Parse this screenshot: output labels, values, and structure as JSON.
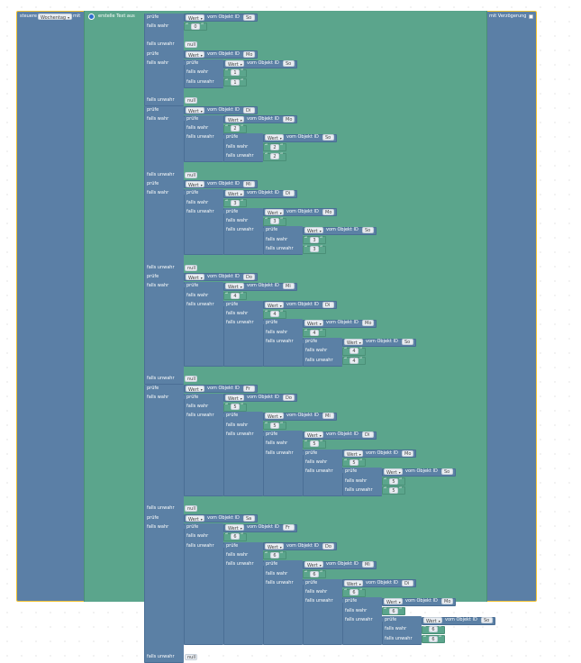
{
  "main_block": {
    "prefix": "steuere",
    "variable": "Wochentag",
    "with": "mit",
    "delay_label": "mit Verzögerung"
  },
  "text_block": {
    "label": "erstelle Text aus"
  },
  "labels": {
    "check": "prüfe",
    "if_true": "falls wahr",
    "if_false": "falls unwahr",
    "null": "null",
    "value_field": "Wert",
    "of_object_id": "vom Objekt ID"
  },
  "days": [
    "So",
    "Mo",
    "Di",
    "Mi",
    "Do",
    "Fr",
    "Sa"
  ],
  "colors": {
    "steuere_block": "#5b7fa6",
    "text_block": "#5ba58c",
    "logic_block": "#5b80a5",
    "selection": "#f1c232",
    "field_bg": "#e9edf2"
  }
}
